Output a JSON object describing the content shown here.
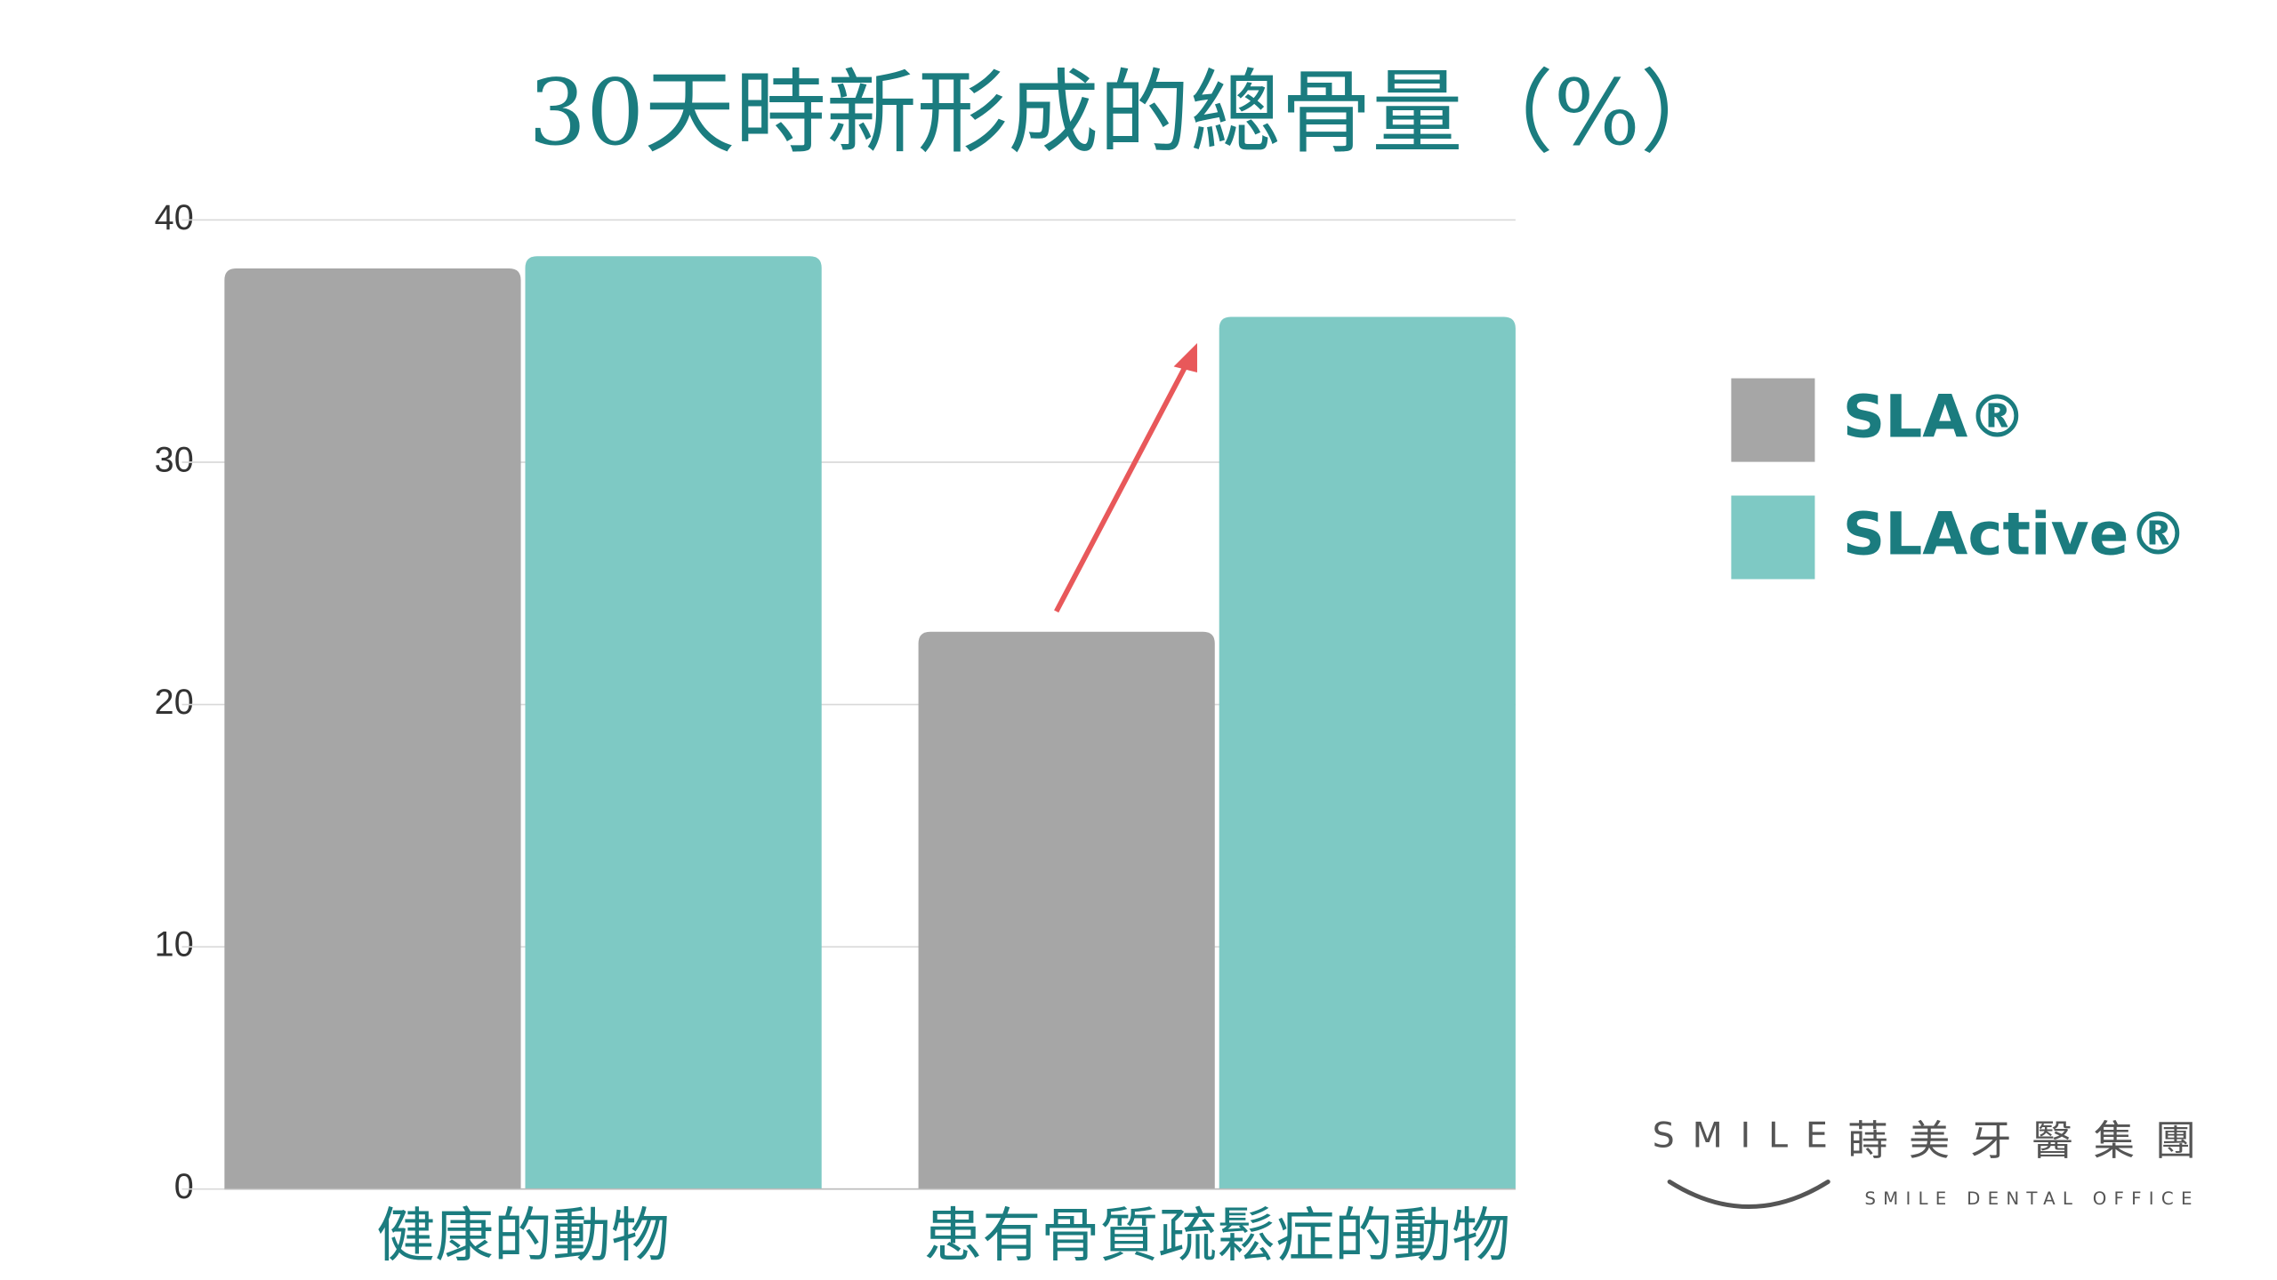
{
  "chart_data": {
    "type": "bar",
    "title": "30天時新形成的總骨量（%）",
    "categories": [
      "健康的動物",
      "患有骨質疏鬆症的動物"
    ],
    "series": [
      {
        "name": "SLA®",
        "color": "#a6a6a6",
        "values": [
          38,
          23
        ]
      },
      {
        "name": "SLActive®",
        "color": "#7ec9c4",
        "values": [
          38.5,
          36
        ]
      }
    ],
    "ylim": [
      0,
      40
    ],
    "yticks": [
      0,
      10,
      20,
      30,
      40
    ],
    "grid": true
  },
  "logo": {
    "brand": "SMILE",
    "name": "蒔美牙醫集團",
    "subtitle": "SMILE DENTAL OFFICE"
  }
}
